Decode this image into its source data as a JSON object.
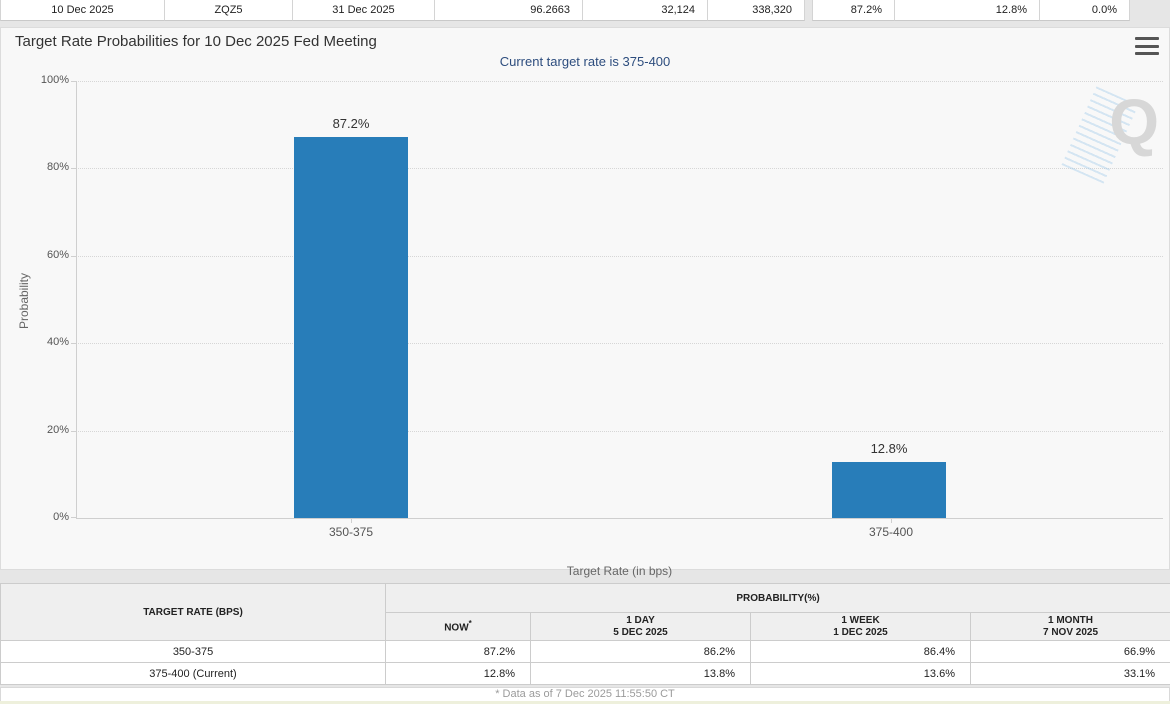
{
  "colors": {
    "bar": "#287db9",
    "subtitle": "#2d4d7e",
    "now_cell_bg": "#fafade"
  },
  "top_row": {
    "cells": [
      {
        "label": "10 Dec 2025"
      },
      {
        "label": "ZQZ5"
      },
      {
        "label": "31 Dec 2025"
      },
      {
        "label": "96.2663"
      },
      {
        "label": "32,124"
      },
      {
        "label": "338,320"
      },
      {
        "label": "87.2%"
      },
      {
        "label": "12.8%"
      },
      {
        "label": "0.0%"
      }
    ]
  },
  "chart": {
    "title": "Target Rate Probabilities for 10 Dec 2025 Fed Meeting",
    "subtitle": "Current target rate is 375-400",
    "menu_icon": "hamburger-menu",
    "watermark_letter": "Q"
  },
  "chart_data": {
    "type": "bar",
    "title": "Target Rate Probabilities for 10 Dec 2025 Fed Meeting",
    "subtitle": "Current target rate is 375-400",
    "categories": [
      "350-375",
      "375-400"
    ],
    "values": [
      87.2,
      12.8
    ],
    "bar_labels": [
      "87.2%",
      "12.8%"
    ],
    "xlabel": "Target Rate (in bps)",
    "ylabel": "Probability",
    "ylim": [
      0,
      100
    ],
    "ytick_labels_top_to_bottom": [
      "100%",
      "80%",
      "60%",
      "40%",
      "20%",
      "0%"
    ],
    "grid": "horizontal-dotted",
    "legend_position": "none",
    "bar_color": "#287db9"
  },
  "prob_table": {
    "col_target_rate": "TARGET RATE (BPS)",
    "col_probability": "PROBABILITY(%)",
    "col_now": "NOW",
    "now_superscript": "*",
    "col_1day": [
      "1 DAY",
      "5 DEC 2025"
    ],
    "col_1week": [
      "1 WEEK",
      "1 DEC 2025"
    ],
    "col_1month": [
      "1 MONTH",
      "7 NOV 2025"
    ],
    "rows": [
      {
        "rate": "350-375",
        "now": "87.2%",
        "one_day": "86.2%",
        "one_week": "86.4%",
        "one_month": "66.9%"
      },
      {
        "rate": "375-400 (Current)",
        "now": "12.8%",
        "one_day": "13.8%",
        "one_week": "13.6%",
        "one_month": "33.1%"
      }
    ],
    "footnote": "* Data as of 7 Dec 2025 11:55:50 CT"
  }
}
